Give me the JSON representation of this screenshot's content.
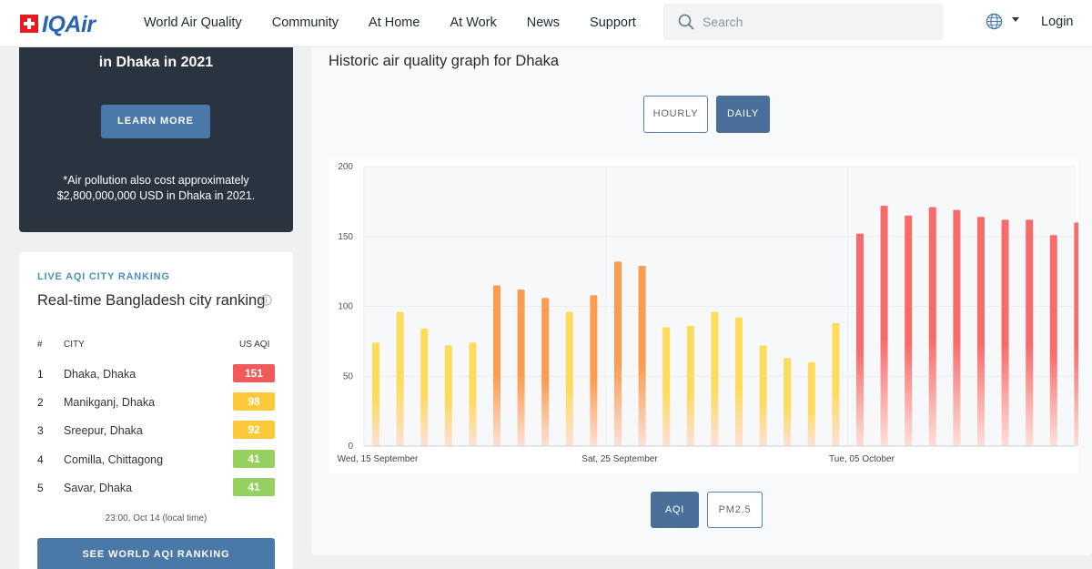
{
  "header": {
    "brand": "IQAir",
    "nav": [
      "World Air Quality",
      "Community",
      "At Home",
      "At Work",
      "News",
      "Support"
    ],
    "search_placeholder": "Search",
    "login": "Login"
  },
  "promo": {
    "title": "in Dhaka in 2021",
    "button": "LEARN MORE",
    "note": "*Air pollution also cost approximately $2,800,000,000 USD in Dhaka in 2021."
  },
  "ranking": {
    "kicker": "LIVE AQI CITY RANKING",
    "title": "Real-time Bangladesh city ranking",
    "columns": {
      "num": "#",
      "city": "CITY",
      "aqi": "US AQI"
    },
    "rows": [
      {
        "num": "1",
        "city": "Dhaka, Dhaka",
        "aqi": "151",
        "color": "#f05a5a"
      },
      {
        "num": "2",
        "city": "Manikganj, Dhaka",
        "aqi": "98",
        "color": "#fcc93a"
      },
      {
        "num": "3",
        "city": "Sreepur, Dhaka",
        "aqi": "92",
        "color": "#fcc93a"
      },
      {
        "num": "4",
        "city": "Comilla, Chittagong",
        "aqi": "41",
        "color": "#96d060"
      },
      {
        "num": "5",
        "city": "Savar, Dhaka",
        "aqi": "41",
        "color": "#96d060"
      }
    ],
    "timestamp": "23:00, Oct 14 (local time)",
    "world_button": "SEE WORLD AQI RANKING"
  },
  "main": {
    "title": "Historic air quality graph for Dhaka",
    "period_buttons": [
      "HOURLY",
      "DAILY"
    ],
    "active_period": "DAILY",
    "metric_buttons": [
      "AQI",
      "PM2.5"
    ],
    "active_metric": "AQI"
  },
  "chart_data": {
    "type": "bar",
    "x_tick_labels": [
      "Wed, 15 September",
      "Sat, 25 September",
      "Tue, 05 October"
    ],
    "y_ticks": [
      0,
      50,
      100,
      150,
      200
    ],
    "ylim": [
      0,
      200
    ],
    "grid": true,
    "values": [
      74,
      96,
      84,
      72,
      74,
      115,
      112,
      106,
      96,
      108,
      132,
      129,
      85,
      86,
      96,
      92,
      72,
      63,
      60,
      88,
      152,
      172,
      165,
      171,
      169,
      164,
      162,
      162,
      151,
      160
    ],
    "colors": {
      "yellow": "#fddc5c",
      "orange": "#fb9c4e",
      "red": "#f96a6a",
      "fade": "#fde0d8"
    }
  }
}
